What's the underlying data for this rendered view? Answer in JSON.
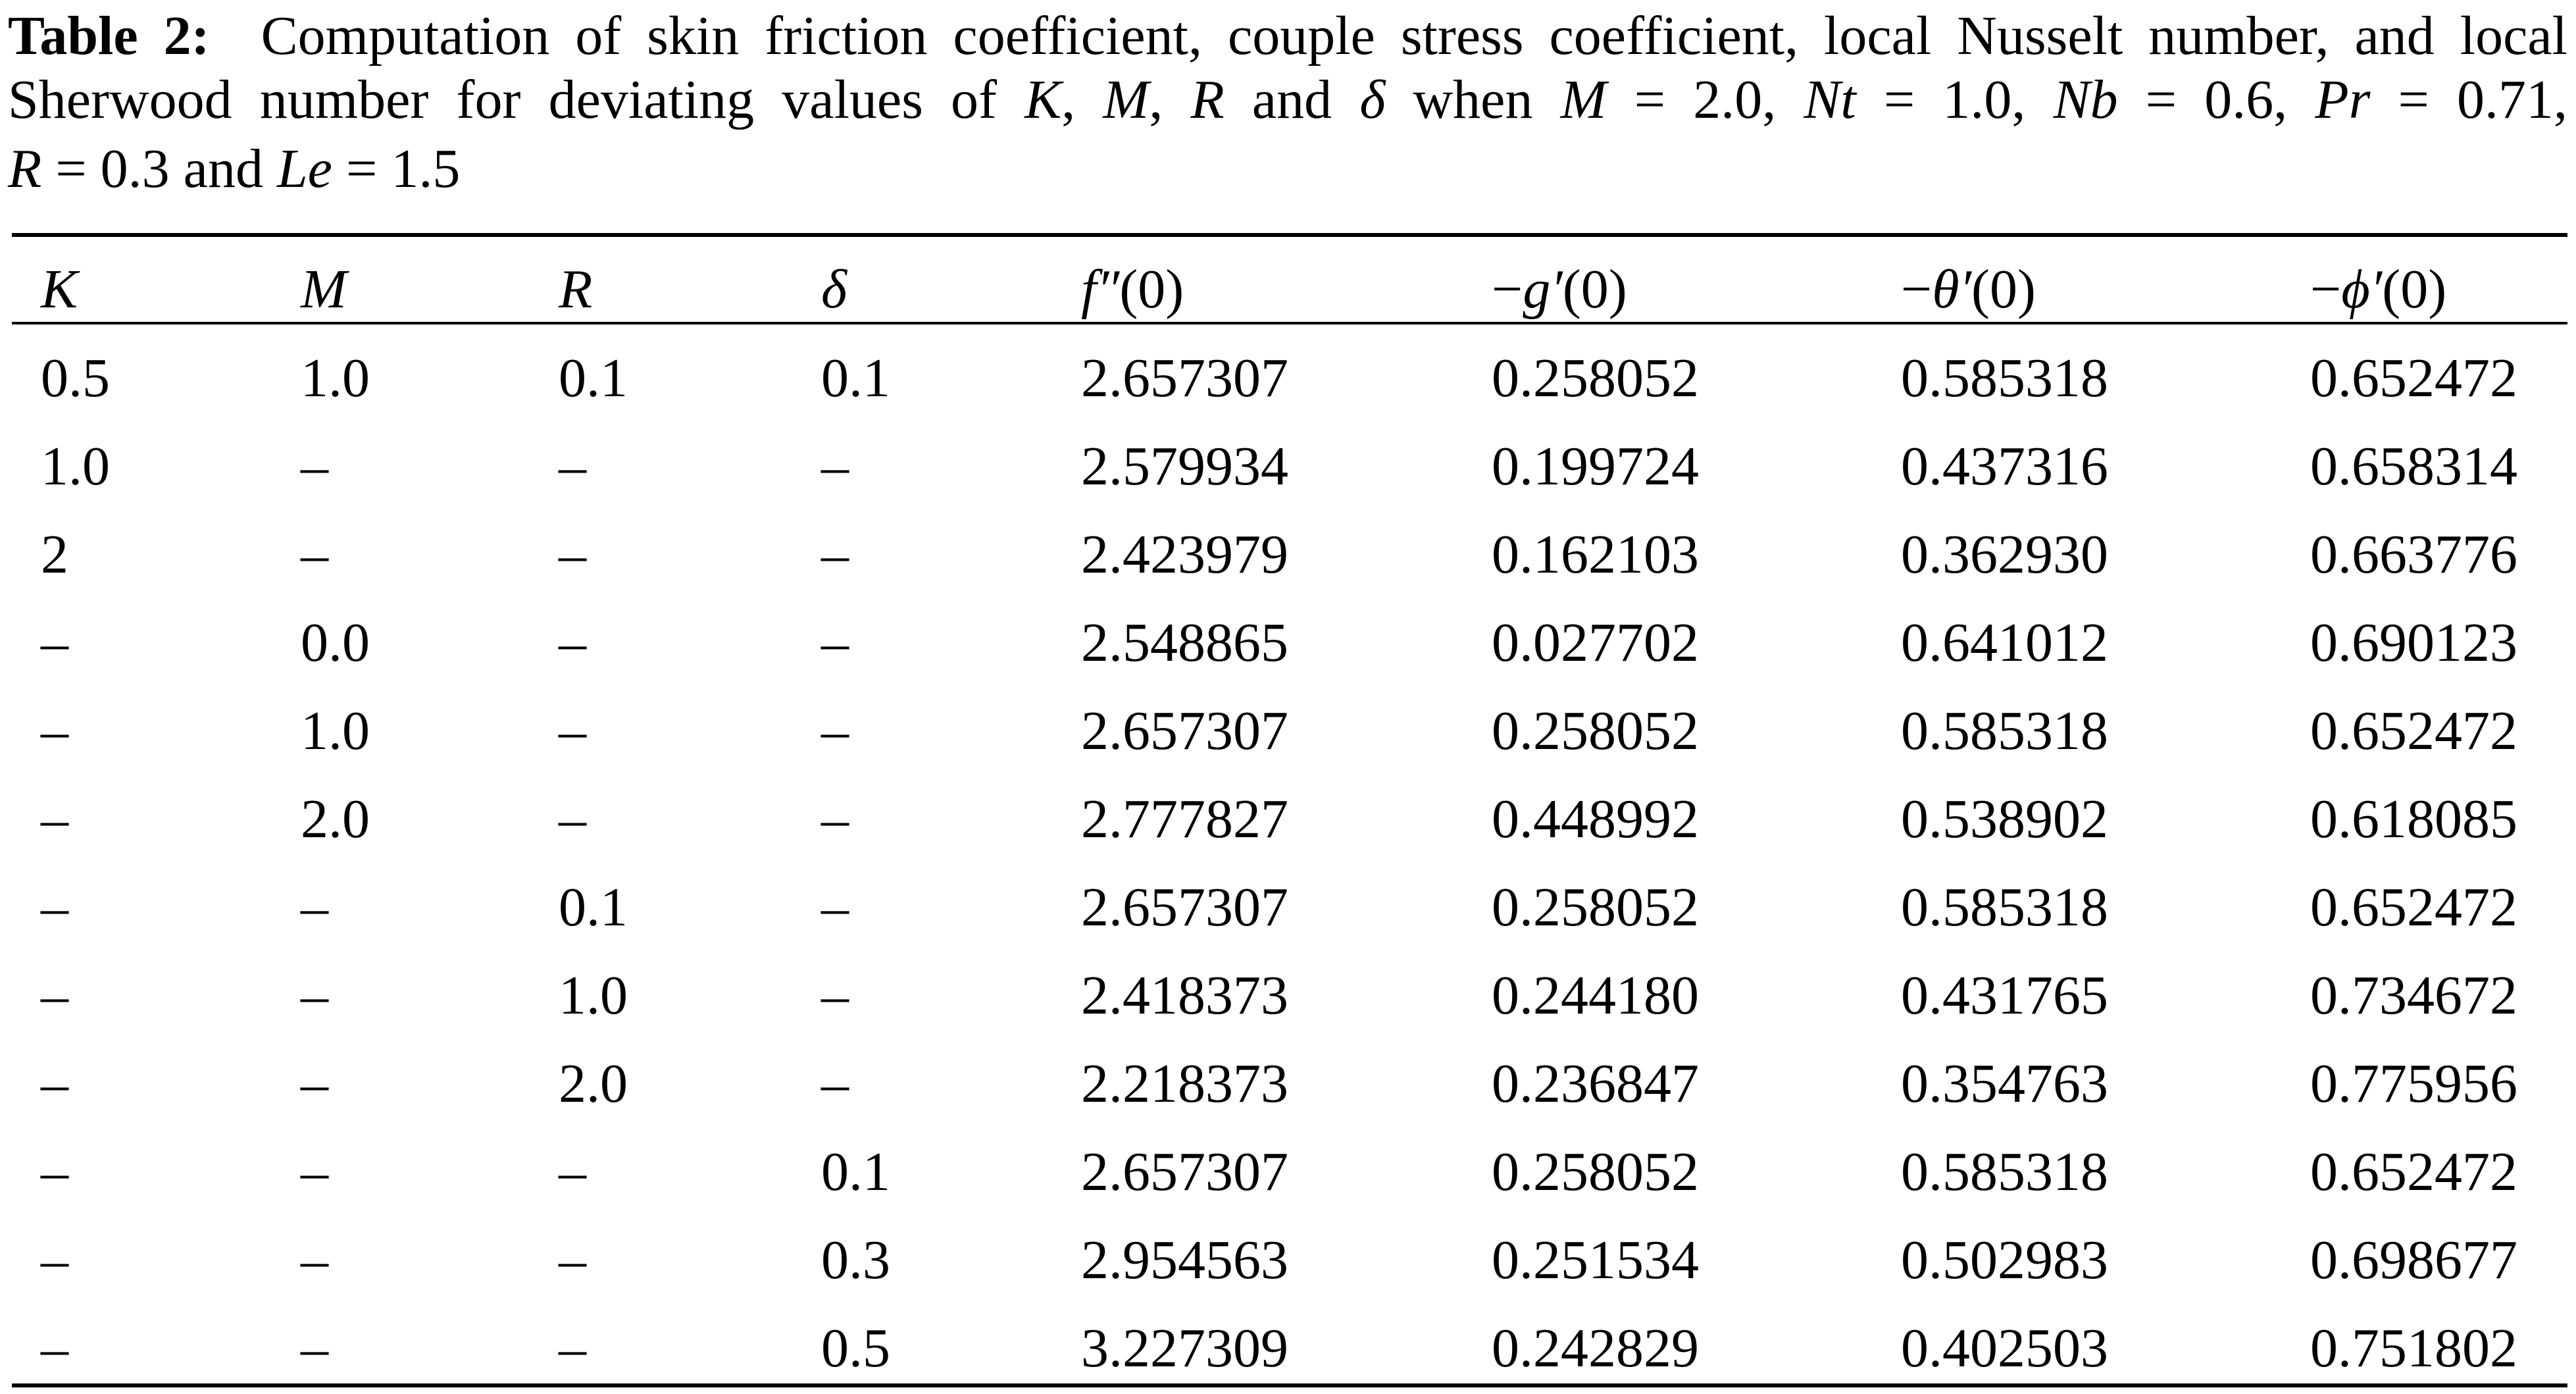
{
  "caption": {
    "label": "Table 2:",
    "line1": "Computation of skin friction coefficient, couple stress coefficient, local Nusselt number, and local",
    "line2": [
      {
        "t": "Sherwood number for deviating values of ",
        "i": false
      },
      {
        "t": "K",
        "i": true
      },
      {
        "t": ", ",
        "i": false
      },
      {
        "t": "M",
        "i": true
      },
      {
        "t": ", ",
        "i": false
      },
      {
        "t": "R",
        "i": true
      },
      {
        "t": " and ",
        "i": false
      },
      {
        "t": "δ",
        "i": true
      },
      {
        "t": " when ",
        "i": false
      },
      {
        "t": "M",
        "i": true
      },
      {
        "t": " = 2.0, ",
        "i": false
      },
      {
        "t": "Nt",
        "i": true
      },
      {
        "t": " = 1.0, ",
        "i": false
      },
      {
        "t": "Nb",
        "i": true
      },
      {
        "t": " = 0.6, ",
        "i": false
      },
      {
        "t": "Pr",
        "i": true
      },
      {
        "t": " = 0.71,",
        "i": false
      }
    ],
    "line3": [
      {
        "t": "R",
        "i": true
      },
      {
        "t": " = 0.3 and ",
        "i": false
      },
      {
        "t": "Le",
        "i": true
      },
      {
        "t": " = 1.5",
        "i": false
      }
    ]
  },
  "table": {
    "headers": [
      {
        "pre": "",
        "sym": "K",
        "post": ""
      },
      {
        "pre": "",
        "sym": "M",
        "post": ""
      },
      {
        "pre": "",
        "sym": "R",
        "post": ""
      },
      {
        "pre": "",
        "sym": "δ",
        "post": ""
      },
      {
        "pre": "",
        "sym": "f″",
        "post": "(0)"
      },
      {
        "pre": "−",
        "sym": "g′",
        "post": "(0)"
      },
      {
        "pre": "−",
        "sym": "θ′",
        "post": "(0)"
      },
      {
        "pre": "−",
        "sym": "ϕ′",
        "post": "(0)"
      }
    ],
    "rows": [
      [
        "0.5",
        "1.0",
        "0.1",
        "0.1",
        "2.657307",
        "0.258052",
        "0.585318",
        "0.652472"
      ],
      [
        "1.0",
        "–",
        "–",
        "–",
        "2.579934",
        "0.199724",
        "0.437316",
        "0.658314"
      ],
      [
        "2",
        "–",
        "–",
        "–",
        "2.423979",
        "0.162103",
        "0.362930",
        "0.663776"
      ],
      [
        "–",
        "0.0",
        "–",
        "–",
        "2.548865",
        "0.027702",
        "0.641012",
        "0.690123"
      ],
      [
        "–",
        "1.0",
        "–",
        "–",
        "2.657307",
        "0.258052",
        "0.585318",
        "0.652472"
      ],
      [
        "–",
        "2.0",
        "–",
        "–",
        "2.777827",
        "0.448992",
        "0.538902",
        "0.618085"
      ],
      [
        "–",
        "–",
        "0.1",
        "–",
        "2.657307",
        "0.258052",
        "0.585318",
        "0.652472"
      ],
      [
        "–",
        "–",
        "1.0",
        "–",
        "2.418373",
        "0.244180",
        "0.431765",
        "0.734672"
      ],
      [
        "–",
        "–",
        "2.0",
        "–",
        "2.218373",
        "0.236847",
        "0.354763",
        "0.775956"
      ],
      [
        "–",
        "–",
        "–",
        "0.1",
        "2.657307",
        "0.258052",
        "0.585318",
        "0.652472"
      ],
      [
        "–",
        "–",
        "–",
        "0.3",
        "2.954563",
        "0.251534",
        "0.502983",
        "0.698677"
      ],
      [
        "–",
        "–",
        "–",
        "0.5",
        "3.227309",
        "0.242829",
        "0.402503",
        "0.751802"
      ]
    ]
  }
}
